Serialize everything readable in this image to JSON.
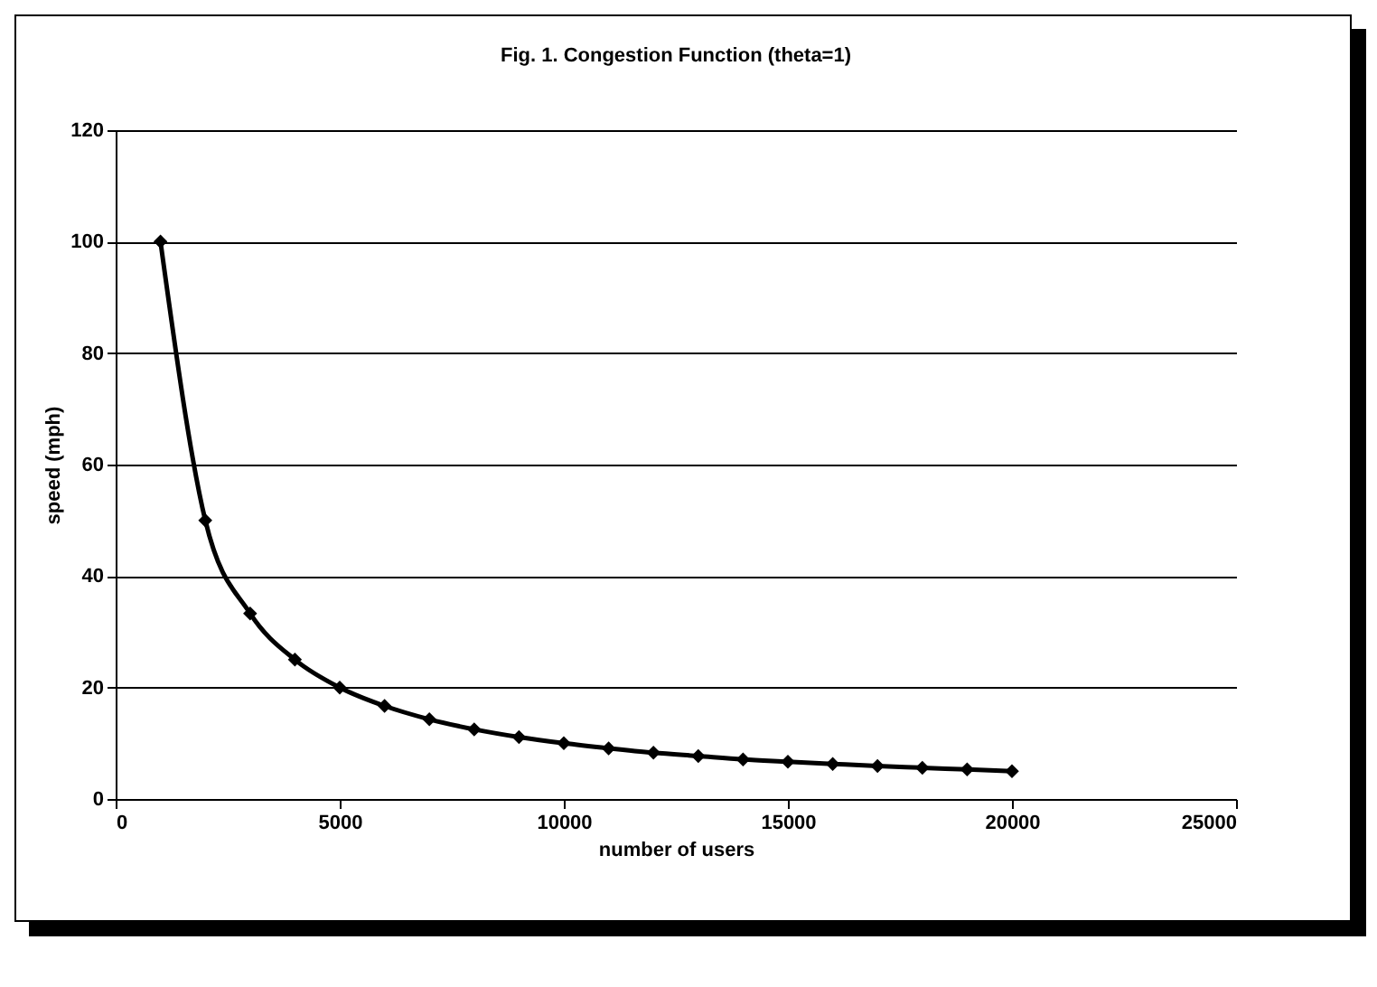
{
  "chart_data": {
    "type": "line",
    "title": "Fig. 1. Congestion Function (theta=1)",
    "xlabel": "number of users",
    "ylabel": "speed (mph)",
    "x": [
      1000,
      2000,
      3000,
      4000,
      5000,
      6000,
      7000,
      8000,
      9000,
      10000,
      11000,
      12000,
      13000,
      14000,
      15000,
      16000,
      17000,
      18000,
      19000,
      20000
    ],
    "series": [
      {
        "color": "#000000",
        "values": [
          100,
          50,
          33.3,
          25,
          20,
          16.7,
          14.3,
          12.5,
          11.1,
          10,
          9.1,
          8.3,
          7.7,
          7.1,
          6.7,
          6.3,
          5.9,
          5.6,
          5.3,
          5
        ]
      }
    ],
    "xlim": [
      0,
      25000
    ],
    "xticks": [
      0,
      5000,
      10000,
      15000,
      20000,
      25000
    ],
    "ylim": [
      0,
      120
    ],
    "yticks": [
      0,
      20,
      40,
      60,
      80,
      100,
      120
    ],
    "grid": "y",
    "marker": "diamond",
    "line_style": "solid"
  }
}
